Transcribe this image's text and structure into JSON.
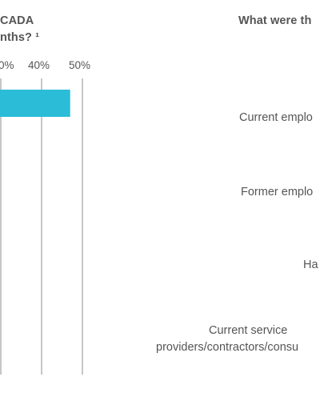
{
  "left_chart": {
    "title_line1": "CADA",
    "title_line2": "nths? ¹",
    "colors": {
      "bar": "#2bbcd8",
      "grid": "#8c8c8c"
    }
  },
  "right_chart": {
    "title": "What were th",
    "categories": [
      {
        "label_lines": [
          "Current emplo"
        ]
      },
      {
        "label_lines": [
          "Former emplo"
        ]
      },
      {
        "label_lines": [
          "Ha"
        ]
      },
      {
        "label_lines": [
          "Current service",
          "providers/contractors/consu"
        ]
      }
    ]
  },
  "chart_data": {
    "type": "bar",
    "orientation": "horizontal",
    "title": "",
    "tick_labels": [
      "0%",
      "40%",
      "50%"
    ],
    "xlim": [
      0,
      50
    ],
    "categories": [
      ""
    ],
    "values": [
      47
    ],
    "grid": true,
    "legend": "none"
  }
}
